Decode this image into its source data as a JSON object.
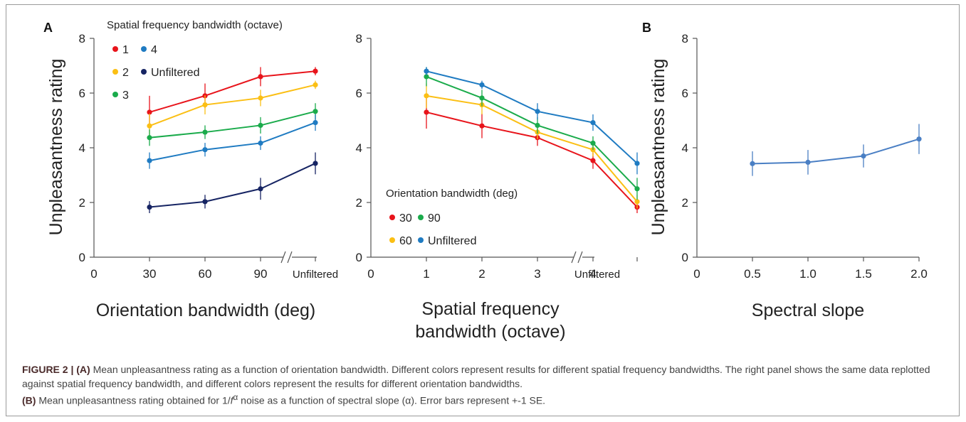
{
  "caption": {
    "figure_label": "FIGURE 2 |",
    "part_a_label": "(A)",
    "part_a_text": " Mean unpleasantness rating as a function of orientation bandwidth. Different colors represent results for different spatial frequency bandwidths. The right panel shows the same data replotted against spatial frequency bandwidth, and different colors represent the results for different orientation bandwidths.",
    "part_b_label": "(B)",
    "part_b_text_1": " Mean unpleasantness rating obtained for 1/",
    "part_b_f": "f",
    "part_b_alpha": "α",
    "part_b_text_2": " noise as a function of spectral slope (α). Error bars represent +-1 SE."
  },
  "chart_data": [
    {
      "panel": "A",
      "type": "line",
      "xlabel": "Orientation bandwidth (deg)",
      "ylabel": "Unpleasantness rating",
      "x_ticks": [
        "0",
        "30",
        "60",
        "90",
        "Unfiltered"
      ],
      "y_ticks": [
        "0",
        "2",
        "4",
        "6",
        "8"
      ],
      "ylim": [
        0,
        8
      ],
      "axis_break": true,
      "legend_title": "Spatial frequency bandwidth (octave)",
      "legend_placement": "top-left",
      "categories": [
        "30",
        "60",
        "90",
        "Unfiltered"
      ],
      "series": [
        {
          "name": "1",
          "color": "#e8141b",
          "values": [
            5.3,
            5.9,
            6.6,
            6.8
          ],
          "se": [
            0.6,
            0.45,
            0.35,
            0.15
          ]
        },
        {
          "name": "2",
          "color": "#fbbf14",
          "values": [
            4.8,
            5.57,
            5.82,
            6.3
          ],
          "se": [
            0.45,
            0.35,
            0.3,
            0.15
          ]
        },
        {
          "name": "3",
          "color": "#1aab4b",
          "values": [
            4.37,
            4.57,
            4.82,
            5.33
          ],
          "se": [
            0.3,
            0.25,
            0.3,
            0.3
          ]
        },
        {
          "name": "4",
          "color": "#1f7bc2",
          "values": [
            3.53,
            3.93,
            4.17,
            4.92
          ],
          "se": [
            0.3,
            0.25,
            0.25,
            0.3
          ]
        },
        {
          "name": "Unfiltered",
          "color": "#162463",
          "values": [
            1.83,
            2.03,
            2.5,
            3.43
          ],
          "se": [
            0.22,
            0.25,
            0.4,
            0.4
          ]
        }
      ]
    },
    {
      "panel": "A-right",
      "type": "line",
      "xlabel_line1": "Spatial frequency",
      "xlabel_line2": "bandwidth (octave)",
      "x_ticks": [
        "0",
        "1",
        "2",
        "3",
        "4",
        "Unfiltered"
      ],
      "y_ticks": [
        "0",
        "2",
        "4",
        "6",
        "8"
      ],
      "ylim": [
        0,
        8
      ],
      "axis_break": true,
      "legend_title": "Orientation bandwidth (deg)",
      "legend_placement": "bottom-left",
      "categories": [
        "1",
        "2",
        "3",
        "4",
        "Unfiltered"
      ],
      "series": [
        {
          "name": "30",
          "color": "#e8141b",
          "values": [
            5.3,
            4.8,
            4.37,
            3.53,
            1.83
          ],
          "se": [
            0.6,
            0.45,
            0.3,
            0.3,
            0.22
          ]
        },
        {
          "name": "60",
          "color": "#fbbf14",
          "values": [
            5.9,
            5.57,
            4.57,
            3.93,
            2.03
          ],
          "se": [
            0.45,
            0.35,
            0.25,
            0.25,
            0.25
          ]
        },
        {
          "name": "90",
          "color": "#1aab4b",
          "values": [
            6.6,
            5.82,
            4.82,
            4.17,
            2.5
          ],
          "se": [
            0.35,
            0.3,
            0.3,
            0.25,
            0.4
          ]
        },
        {
          "name": "Unfiltered",
          "color": "#1f7bc2",
          "values": [
            6.8,
            6.3,
            5.33,
            4.92,
            3.43
          ],
          "se": [
            0.15,
            0.15,
            0.3,
            0.3,
            0.4
          ]
        }
      ]
    },
    {
      "panel": "B",
      "type": "line",
      "xlabel": "Spectral slope",
      "ylabel": "Unpleasantness rating",
      "x_ticks": [
        "0",
        "0.5",
        "1.0",
        "1.5",
        "2.0"
      ],
      "y_ticks": [
        "0",
        "2",
        "4",
        "6",
        "8"
      ],
      "xlim": [
        0,
        2
      ],
      "ylim": [
        0,
        8
      ],
      "x": [
        0.5,
        1.0,
        1.5,
        2.0
      ],
      "series": [
        {
          "color": "#4a7fc4",
          "values": [
            3.42,
            3.47,
            3.7,
            4.32
          ],
          "se": [
            0.45,
            0.45,
            0.42,
            0.55
          ]
        }
      ]
    }
  ]
}
